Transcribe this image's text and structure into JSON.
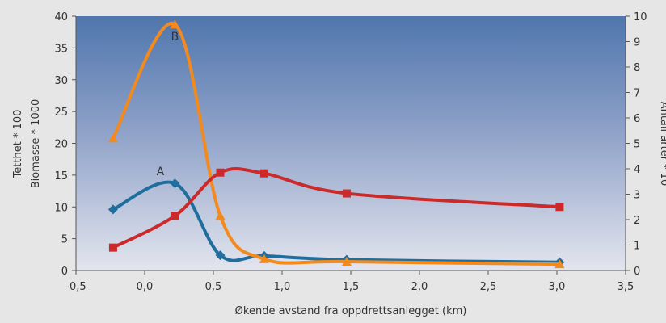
{
  "chart_data": {
    "type": "line",
    "xlabel": "Økende avstand fra oppdrettsanlegget (km)",
    "ylabel_left": [
      "Biomasse * 1000",
      "Tetthet * 100"
    ],
    "ylabel_right": "Antall arter * 10",
    "xlim": [
      -0.5,
      3.5
    ],
    "ylim_left": [
      0,
      40
    ],
    "ylim_right": [
      0,
      10
    ],
    "x_ticks": [
      -0.5,
      0.0,
      0.5,
      1.0,
      1.5,
      2.0,
      2.5,
      3.0,
      3.5
    ],
    "x_tick_labels": [
      "-0,5",
      "0,0",
      "0,5",
      "1,0",
      "1,5",
      "2,0",
      "2,5",
      "3,0",
      "3,5"
    ],
    "y_left_ticks": [
      0,
      5,
      10,
      15,
      20,
      25,
      30,
      35,
      40
    ],
    "y_right_ticks": [
      0,
      1,
      2,
      3,
      4,
      5,
      6,
      7,
      8,
      9,
      10
    ],
    "grid": false,
    "series": [
      {
        "label": "A",
        "axis": "left",
        "color": "#1f6e9e",
        "marker": "diamond",
        "x": [
          -0.23,
          0.22,
          0.55,
          0.87,
          1.47,
          3.02
        ],
        "y": [
          9.6,
          13.7,
          2.4,
          2.3,
          1.7,
          1.3
        ]
      },
      {
        "label": "B",
        "axis": "left",
        "color": "#f28a1e",
        "marker": "triangle",
        "x": [
          -0.23,
          0.22,
          0.55,
          0.87,
          1.47,
          3.02
        ],
        "y": [
          20.8,
          38.7,
          8.6,
          1.8,
          1.4,
          1.0
        ]
      },
      {
        "axis": "right",
        "color": "#cc2a2a",
        "marker": "square",
        "x": [
          -0.23,
          0.22,
          0.55,
          0.87,
          1.47,
          3.02
        ],
        "y": [
          0.9,
          2.15,
          3.85,
          3.82,
          3.03,
          2.5
        ]
      }
    ]
  }
}
